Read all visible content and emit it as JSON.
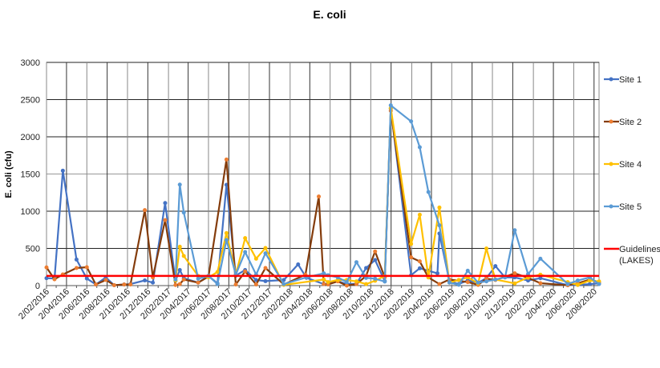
{
  "chart_data": {
    "type": "line",
    "title": "E. coli",
    "xlabel": "",
    "ylabel": "E. coli (cfu)",
    "xlim": [
      "2016-02-02",
      "2020-08-17"
    ],
    "ylim": [
      0,
      3000
    ],
    "yticks": [
      0,
      500,
      1000,
      1500,
      2000,
      2500,
      3000
    ],
    "xtick_labels": [
      "2/02/2016",
      "2/04/2016",
      "2/06/2016",
      "2/08/2016",
      "2/10/2016",
      "2/12/2016",
      "2/02/2017",
      "2/04/2017",
      "2/06/2017",
      "2/08/2017",
      "2/10/2017",
      "2/12/2017",
      "2/02/2018",
      "2/04/2018",
      "2/06/2018",
      "2/08/2018",
      "2/10/2018",
      "2/12/2018",
      "2/02/2019",
      "2/04/2019",
      "2/06/2019",
      "2/08/2019",
      "2/10/2019",
      "2/12/2019",
      "2/02/2020",
      "2/04/2020",
      "2/06/2020",
      "2/08/2020"
    ],
    "xtick_dates": [
      "2016-02-02",
      "2016-04-02",
      "2016-06-02",
      "2016-08-02",
      "2016-10-02",
      "2016-12-02",
      "2017-02-02",
      "2017-04-02",
      "2017-06-02",
      "2017-08-02",
      "2017-10-02",
      "2017-12-02",
      "2018-02-02",
      "2018-04-02",
      "2018-06-02",
      "2018-08-02",
      "2018-10-02",
      "2018-12-02",
      "2019-02-02",
      "2019-04-02",
      "2019-06-02",
      "2019-08-02",
      "2019-10-02",
      "2019-12-02",
      "2020-02-02",
      "2020-04-02",
      "2020-06-02",
      "2020-08-02"
    ],
    "grid": true,
    "legend_position": "right",
    "series": [
      {
        "name": "Site 1",
        "color": "#4472C4",
        "marker_color": "#4472C4",
        "x": [
          "2016-02-02",
          "2016-02-26",
          "2016-03-22",
          "2016-05-02",
          "2016-06-02",
          "2016-06-29",
          "2016-07-29",
          "2016-08-23",
          "2016-09-22",
          "2016-10-11",
          "2016-11-23",
          "2016-12-17",
          "2017-01-23",
          "2017-02-23",
          "2017-03-08",
          "2017-03-20",
          "2017-05-02",
          "2017-06-02",
          "2017-06-29",
          "2017-07-26",
          "2017-08-23",
          "2017-09-20",
          "2017-10-23",
          "2017-11-20",
          "2018-01-14",
          "2018-02-26",
          "2018-03-23",
          "2018-05-14",
          "2018-05-27",
          "2018-06-25",
          "2018-07-22",
          "2018-08-20",
          "2018-09-18",
          "2018-10-15",
          "2018-11-13",
          "2018-12-01",
          "2019-01-31",
          "2019-02-26",
          "2019-03-24",
          "2019-04-20",
          "2019-04-26",
          "2019-05-26",
          "2019-06-23",
          "2019-07-20",
          "2019-08-20",
          "2019-09-14",
          "2019-10-11",
          "2019-11-09",
          "2019-12-08",
          "2020-01-17",
          "2020-02-23",
          "2020-05-15",
          "2020-06-14",
          "2020-07-20",
          "2020-08-17"
        ],
        "values": [
          100,
          95,
          1545,
          350,
          95,
          15,
          110,
          5,
          15,
          20,
          70,
          40,
          1110,
          65,
          210,
          100,
          40,
          130,
          30,
          1355,
          135,
          210,
          75,
          60,
          75,
          285,
          105,
          20,
          30,
          60,
          20,
          25,
          236,
          344,
          60,
          2380,
          140,
          233,
          200,
          165,
          700,
          57,
          20,
          70,
          40,
          100,
          262,
          110,
          110,
          68,
          100,
          5,
          10,
          20,
          30
        ]
      },
      {
        "name": "Site 2",
        "color": "#843C0C",
        "marker_color": "#ED7D31",
        "x": [
          "2016-02-02",
          "2016-02-26",
          "2016-03-22",
          "2016-05-02",
          "2016-06-02",
          "2016-06-29",
          "2016-07-29",
          "2016-08-23",
          "2016-09-22",
          "2016-10-11",
          "2016-11-23",
          "2016-12-17",
          "2017-01-23",
          "2017-02-23",
          "2017-03-08",
          "2017-03-20",
          "2017-05-02",
          "2017-06-02",
          "2017-07-26",
          "2017-08-23",
          "2017-09-20",
          "2017-10-23",
          "2017-11-20",
          "2018-01-14",
          "2018-03-20",
          "2018-04-29",
          "2018-05-14",
          "2018-05-27",
          "2018-06-25",
          "2018-07-22",
          "2018-08-20",
          "2018-09-18",
          "2018-10-15",
          "2018-11-13",
          "2018-12-01",
          "2019-01-31",
          "2019-02-26",
          "2019-03-24",
          "2019-04-26",
          "2019-05-26",
          "2019-07-20",
          "2019-08-20",
          "2019-09-14",
          "2019-10-11",
          "2019-12-08",
          "2020-01-17",
          "2020-02-23",
          "2020-05-15",
          "2020-06-14",
          "2020-07-20",
          "2020-08-17"
        ],
        "values": [
          245,
          85,
          150,
          237,
          247,
          15,
          75,
          5,
          15,
          15,
          1015,
          110,
          880,
          8,
          20,
          82,
          40,
          120,
          1695,
          15,
          190,
          15,
          237,
          15,
          147,
          1197,
          20,
          15,
          57,
          0,
          20,
          130,
          459,
          110,
          2350,
          380,
          326,
          110,
          20,
          82,
          47,
          10,
          93,
          75,
          165,
          104,
          32,
          4,
          30,
          82,
          47
        ]
      },
      {
        "name": "Site 4",
        "color": "#FFC000",
        "marker_color": "#FFC000",
        "x": [
          "2017-02-23",
          "2017-03-08",
          "2017-03-20",
          "2017-05-02",
          "2017-06-02",
          "2017-06-29",
          "2017-07-26",
          "2017-08-23",
          "2017-09-20",
          "2017-10-23",
          "2017-11-20",
          "2018-01-14",
          "2018-05-14",
          "2018-05-27",
          "2018-06-25",
          "2018-07-22",
          "2018-08-20",
          "2018-09-18",
          "2018-10-15",
          "2018-11-13",
          "2018-12-01",
          "2019-01-31",
          "2019-02-26",
          "2019-03-24",
          "2019-04-26",
          "2019-05-26",
          "2019-06-23",
          "2019-07-20",
          "2019-08-20",
          "2019-09-14",
          "2019-10-11",
          "2019-12-08",
          "2020-01-17",
          "2020-02-23",
          "2020-05-15",
          "2020-06-14",
          "2020-07-20",
          "2020-08-17"
        ],
        "values": [
          68,
          523,
          398,
          130,
          111,
          183,
          706,
          147,
          638,
          362,
          505,
          10,
          82,
          47,
          75,
          75,
          57,
          20,
          65,
          130,
          2385,
          560,
          953,
          111,
          1050,
          40,
          75,
          111,
          30,
          498,
          82,
          30,
          111,
          147,
          47,
          10,
          68,
          57
        ]
      },
      {
        "name": "Site 5",
        "color": "#5B9BD5",
        "marker_color": "#5B9BD5",
        "x": [
          "2017-02-23",
          "2017-03-08",
          "2017-03-20",
          "2017-05-02",
          "2017-06-02",
          "2017-06-29",
          "2017-07-26",
          "2017-08-23",
          "2017-09-20",
          "2017-10-23",
          "2017-11-20",
          "2018-01-14",
          "2018-03-23",
          "2018-05-14",
          "2018-05-27",
          "2018-06-25",
          "2018-07-22",
          "2018-08-20",
          "2018-09-18",
          "2018-10-15",
          "2018-11-13",
          "2018-12-01",
          "2019-01-31",
          "2019-02-26",
          "2019-03-24",
          "2019-04-26",
          "2019-05-26",
          "2019-06-23",
          "2019-07-20",
          "2019-08-20",
          "2019-09-14",
          "2019-10-11",
          "2019-11-09",
          "2019-12-08",
          "2020-01-17",
          "2020-02-23",
          "2020-05-15",
          "2020-06-14",
          "2020-07-20",
          "2020-08-17"
        ],
        "values": [
          82,
          1358,
          982,
          93,
          130,
          20,
          613,
          147,
          452,
          147,
          434,
          20,
          111,
          165,
          140,
          111,
          47,
          315,
          104,
          93,
          54,
          2423,
          2208,
          1860,
          1258,
          810,
          40,
          11,
          200,
          40,
          57,
          82,
          111,
          745,
          154,
          362,
          20,
          68,
          111,
          20
        ]
      }
    ],
    "guideline": {
      "name": "Guidelines (LAKES)",
      "value": 130,
      "color": "#FF0000"
    }
  }
}
